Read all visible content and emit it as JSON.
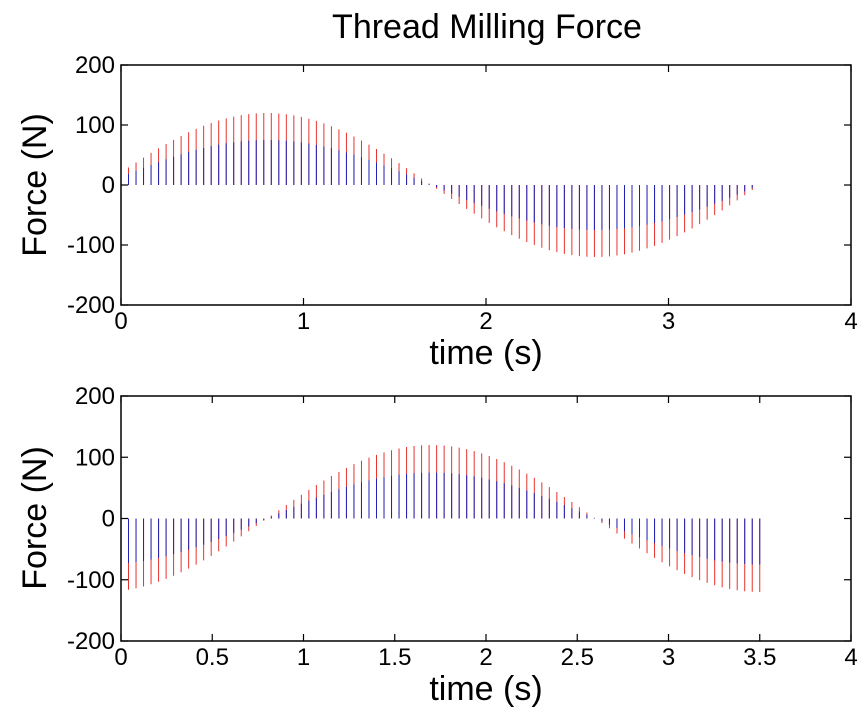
{
  "chart_data": [
    {
      "type": "line",
      "title": "Thread Milling Force",
      "xlabel": "time (s)",
      "ylabel": "Force (N)",
      "xlim": [
        0,
        4
      ],
      "ylim": [
        -200,
        200
      ],
      "xticks": [
        "0",
        "1",
        "2",
        "3",
        "4"
      ],
      "yticks": [
        "200",
        "100",
        "0",
        "-100",
        "-200"
      ],
      "grid": false,
      "duration": 3.5,
      "pulses": 85,
      "series": [
        {
          "color": "#e8332e",
          "envelope": {
            "amplitude": 120,
            "period": 3.6,
            "phase": -0.1
          },
          "note_values": "tooth-pass force pulses, peak envelope ~120 N"
        },
        {
          "color": "#1f23b8",
          "envelope": {
            "amplitude": 75,
            "period": 3.6,
            "phase": -0.1
          }
        }
      ]
    },
    {
      "type": "line",
      "title": "",
      "xlabel": "time (s)",
      "ylabel": "Force (N)",
      "xlim": [
        0,
        4
      ],
      "ylim": [
        -200,
        200
      ],
      "xticks": [
        "0",
        "0.5",
        "1",
        "1.5",
        "2",
        "2.5",
        "3",
        "3.5",
        "4"
      ],
      "yticks": [
        "200",
        "100",
        "0",
        "-100",
        "-200"
      ],
      "grid": false,
      "duration": 3.5,
      "pulses": 85,
      "series": [
        {
          "color": "#e8332e",
          "envelope": {
            "amplitude": 120,
            "period": 3.6,
            "phase": 0.8
          }
        },
        {
          "color": "#1f23b8",
          "envelope": {
            "amplitude": 75,
            "period": 3.6,
            "phase": 0.8
          }
        }
      ]
    }
  ]
}
